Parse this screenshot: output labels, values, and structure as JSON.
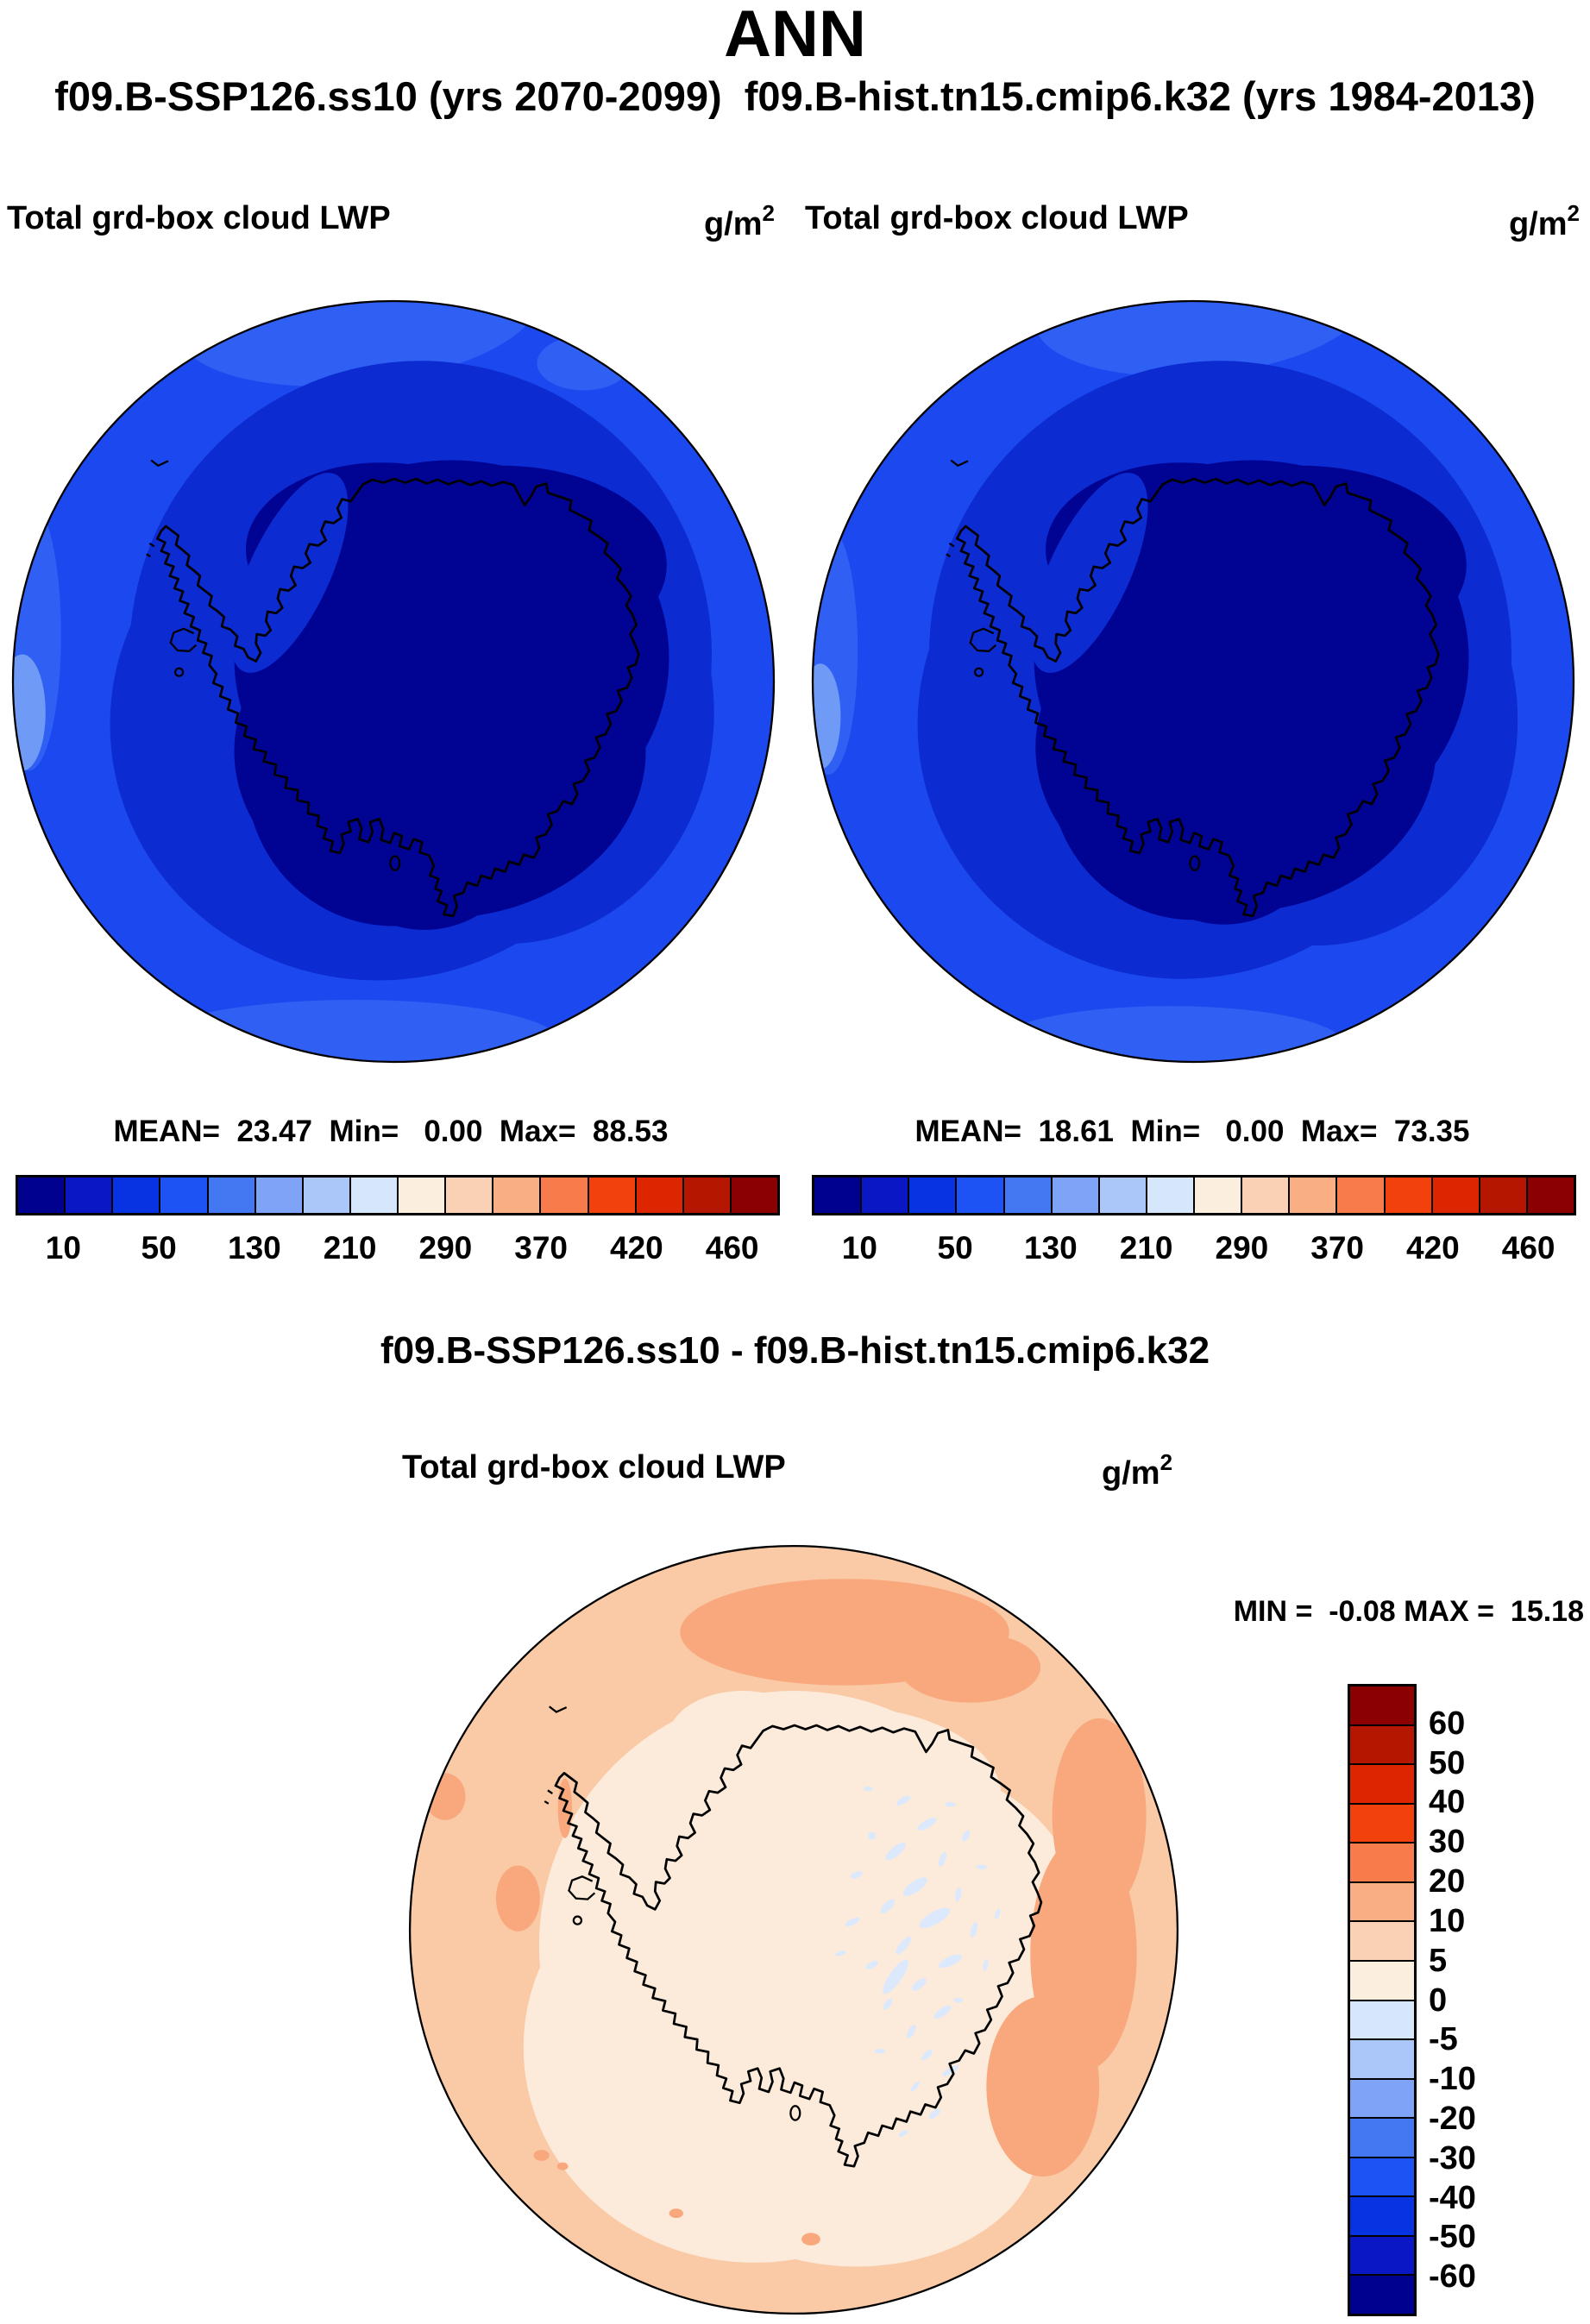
{
  "season_label": "ANN",
  "subtitle": "f09.B-SSP126.ss10 (yrs 2070-2099)  f09.B-hist.tn15.cmip6.k32 (yrs 1984-2013)",
  "panels": [
    {
      "title": "Total grd-box cloud LWP",
      "units_base": "g/m",
      "units_exp": "2",
      "stats_line": "MEAN=  23.47  Min=   0.00  Max=  88.53"
    },
    {
      "title": "Total grd-box cloud LWP",
      "units_base": "g/m",
      "units_exp": "2",
      "stats_line": "MEAN=  18.61  Min=   0.00  Max=  73.35"
    }
  ],
  "diff": {
    "title": "f09.B-SSP126.ss10 - f09.B-hist.tn15.cmip6.k32",
    "panel_title": "Total grd-box cloud LWP",
    "units_base": "g/m",
    "units_exp": "2",
    "minmax_line": "MIN =  -0.08 MAX =  15.18"
  },
  "colorbar": {
    "palette": [
      "#01018F",
      "#0A17C4",
      "#0733E2",
      "#1D52F5",
      "#4478F3",
      "#7FA3F6",
      "#ABC6F9",
      "#D6E6FB",
      "#FCEEDF",
      "#FAD1B5",
      "#F9AE83",
      "#F87C4B",
      "#F2410D",
      "#DD2600",
      "#B51600",
      "#8B0000"
    ],
    "tick_labels": [
      "10",
      "50",
      "130",
      "210",
      "290",
      "370",
      "420",
      "460"
    ],
    "tick_positions": [
      1,
      3,
      5,
      7,
      9,
      11,
      13,
      15
    ]
  },
  "diff_colorbar": {
    "labels": [
      "60",
      "50",
      "40",
      "30",
      "20",
      "10",
      "5",
      "0",
      "-5",
      "-10",
      "-20",
      "-30",
      "-40",
      "-50",
      "-60"
    ]
  },
  "map_colors": {
    "ocean_outer": "#1C49EF",
    "ocean_light": "#2F60F3",
    "ocean_lighter": "#6F9BF6",
    "ocean_mid": "#0C2BD1",
    "ocean_inner": "#010493",
    "diff_ring": "#FAC9A5",
    "diff_inner": "#FCEBDA",
    "diff_deep": "#F8A87C",
    "diff_blue": "#DCE9FC"
  },
  "chart_data": [
    {
      "type": "heatmap",
      "projection": "south-polar-stereographic",
      "season": "ANN",
      "title": "Total grd-box cloud LWP",
      "units": "g/m2",
      "run": "f09.B-SSP126.ss10 (yrs 2070-2099)",
      "mean": 23.47,
      "min": 0.0,
      "max": 88.53,
      "colorbar_ticks": [
        10,
        50,
        130,
        210,
        290,
        370,
        420,
        460
      ],
      "legend_position": "bottom"
    },
    {
      "type": "heatmap",
      "projection": "south-polar-stereographic",
      "season": "ANN",
      "title": "Total grd-box cloud LWP",
      "units": "g/m2",
      "run": "f09.B-hist.tn15.cmip6.k32 (yrs 1984-2013)",
      "mean": 18.61,
      "min": 0.0,
      "max": 73.35,
      "colorbar_ticks": [
        10,
        50,
        130,
        210,
        290,
        370,
        420,
        460
      ],
      "legend_position": "bottom"
    },
    {
      "type": "heatmap",
      "projection": "south-polar-stereographic",
      "season": "ANN",
      "title": "Total grd-box cloud LWP",
      "units": "g/m2",
      "run": "f09.B-SSP126.ss10 - f09.B-hist.tn15.cmip6.k32",
      "min": -0.08,
      "max": 15.18,
      "colorbar_ticks": [
        60,
        50,
        40,
        30,
        20,
        10,
        5,
        0,
        -5,
        -10,
        -20,
        -30,
        -40,
        -50,
        -60
      ],
      "legend_position": "right"
    }
  ]
}
